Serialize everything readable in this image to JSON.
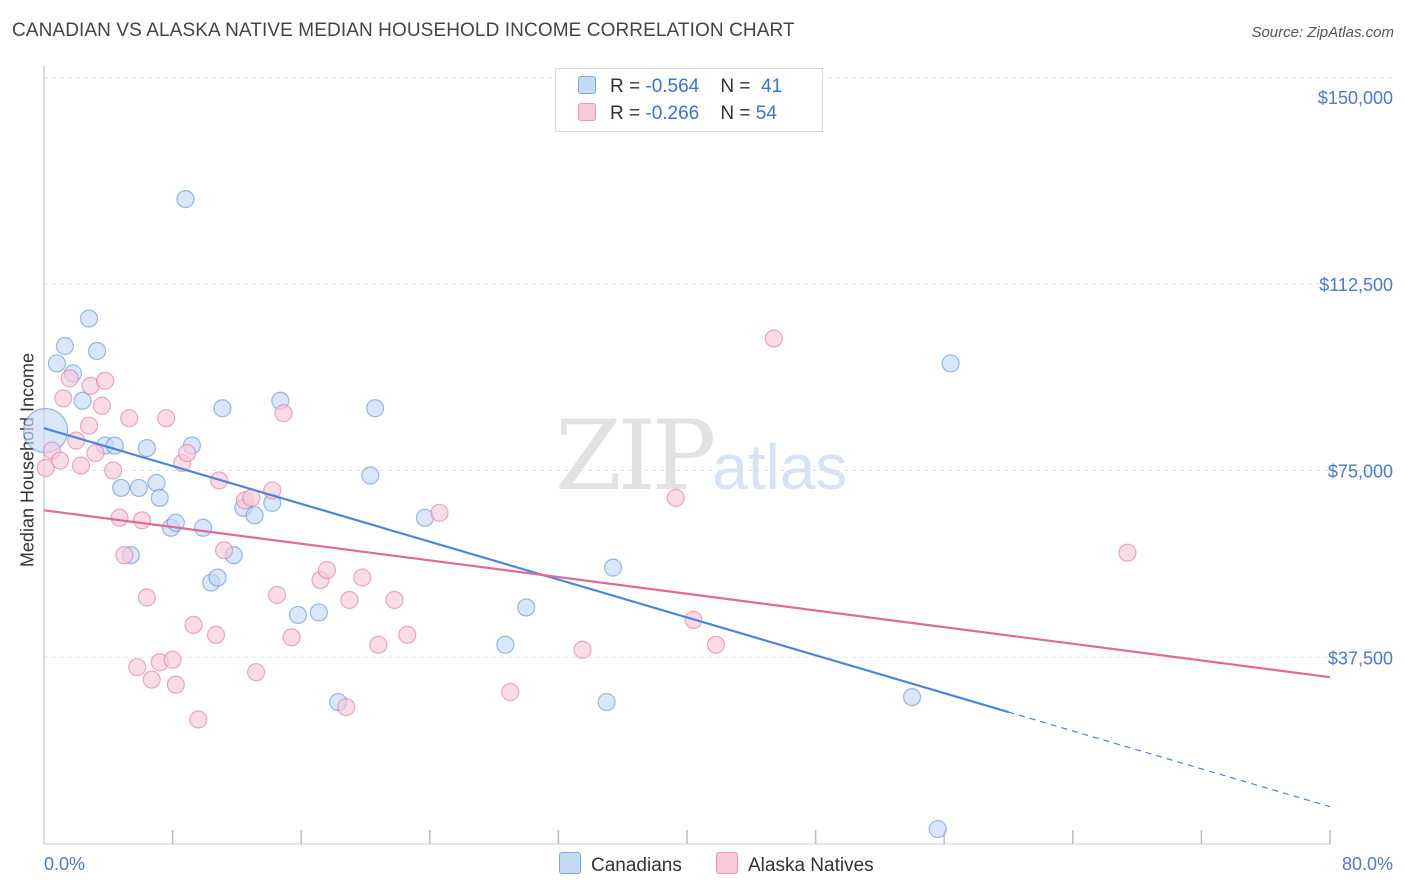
{
  "title": "CANADIAN VS ALASKA NATIVE MEDIAN HOUSEHOLD INCOME CORRELATION CHART",
  "source": "Source: ZipAtlas.com",
  "watermark": {
    "zip": "ZIP",
    "atlas": "atlas"
  },
  "legend": {
    "rows": [
      {
        "r_label": "R = ",
        "r_value": "-0.564",
        "n_label": "N = ",
        "n_value": "41",
        "color": "#a8c8ef"
      },
      {
        "r_label": "R = ",
        "r_value": "-0.266",
        "n_label": "N = ",
        "n_value": "54",
        "color": "#f5b8cb"
      }
    ]
  },
  "bottom_legend": [
    {
      "label": "Canadians",
      "color": "#a8c8ef"
    },
    {
      "label": "Alaska Natives",
      "color": "#f5b8cb"
    }
  ],
  "chart_data": {
    "type": "scatter",
    "ylabel": "Median Household Income",
    "xlabel": "",
    "x_tick_labels": [
      "0.0%",
      "80.0%"
    ],
    "y_tick_labels": [
      "$150,000",
      "$112,500",
      "$75,000",
      "$37,500"
    ],
    "y_ticks": [
      150000,
      112500,
      75000,
      37500
    ],
    "xlim": [
      0,
      80
    ],
    "ylim": [
      0,
      153000
    ],
    "grid": true,
    "series": [
      {
        "name": "Canadians",
        "color": "#4a86d8",
        "fill": "#c4daf4",
        "trend": {
          "x0": 0,
          "y0": 83500,
          "x1": 60,
          "y1": 26500,
          "dash_to_x": 80,
          "dash_to_y": 7500
        },
        "points": [
          {
            "x": 0.1,
            "y": 83000,
            "big": true
          },
          {
            "x": 0.8,
            "y": 96500
          },
          {
            "x": 1.3,
            "y": 100000
          },
          {
            "x": 1.8,
            "y": 94500
          },
          {
            "x": 2.4,
            "y": 89000
          },
          {
            "x": 2.8,
            "y": 105500
          },
          {
            "x": 3.3,
            "y": 99000
          },
          {
            "x": 3.8,
            "y": 80000
          },
          {
            "x": 4.4,
            "y": 80000
          },
          {
            "x": 4.8,
            "y": 71500
          },
          {
            "x": 5.4,
            "y": 58000
          },
          {
            "x": 5.9,
            "y": 71500
          },
          {
            "x": 6.4,
            "y": 79500
          },
          {
            "x": 7.0,
            "y": 72500
          },
          {
            "x": 7.2,
            "y": 69500
          },
          {
            "x": 7.9,
            "y": 63500
          },
          {
            "x": 8.2,
            "y": 64500
          },
          {
            "x": 8.8,
            "y": 129500
          },
          {
            "x": 9.2,
            "y": 80000
          },
          {
            "x": 9.9,
            "y": 63500
          },
          {
            "x": 10.4,
            "y": 52500
          },
          {
            "x": 10.8,
            "y": 53500
          },
          {
            "x": 11.1,
            "y": 87500
          },
          {
            "x": 11.8,
            "y": 58000
          },
          {
            "x": 12.4,
            "y": 67500
          },
          {
            "x": 13.1,
            "y": 66000
          },
          {
            "x": 14.2,
            "y": 68500
          },
          {
            "x": 14.7,
            "y": 89000
          },
          {
            "x": 15.8,
            "y": 46000
          },
          {
            "x": 17.1,
            "y": 46500
          },
          {
            "x": 18.3,
            "y": 28500
          },
          {
            "x": 20.3,
            "y": 74000
          },
          {
            "x": 20.6,
            "y": 87500
          },
          {
            "x": 23.7,
            "y": 65500
          },
          {
            "x": 28.7,
            "y": 40000
          },
          {
            "x": 30.0,
            "y": 47500
          },
          {
            "x": 35.0,
            "y": 28500
          },
          {
            "x": 35.4,
            "y": 55500
          },
          {
            "x": 54.0,
            "y": 29500
          },
          {
            "x": 55.6,
            "y": 3000
          },
          {
            "x": 56.4,
            "y": 96500
          }
        ]
      },
      {
        "name": "Alaska Natives",
        "color": "#e06a97",
        "fill": "#f8cad9",
        "trend": {
          "x0": 0,
          "y0": 67000,
          "x1": 80,
          "y1": 33500
        },
        "points": [
          {
            "x": 0.1,
            "y": 75500
          },
          {
            "x": 0.5,
            "y": 79000
          },
          {
            "x": 1.0,
            "y": 77000
          },
          {
            "x": 1.2,
            "y": 89500
          },
          {
            "x": 1.6,
            "y": 93500
          },
          {
            "x": 2.0,
            "y": 81000
          },
          {
            "x": 2.3,
            "y": 76000
          },
          {
            "x": 2.8,
            "y": 84000
          },
          {
            "x": 2.9,
            "y": 92000
          },
          {
            "x": 3.2,
            "y": 78500
          },
          {
            "x": 3.6,
            "y": 88000
          },
          {
            "x": 3.8,
            "y": 93000
          },
          {
            "x": 4.3,
            "y": 75000
          },
          {
            "x": 4.7,
            "y": 65500
          },
          {
            "x": 5.0,
            "y": 58000
          },
          {
            "x": 5.3,
            "y": 85500
          },
          {
            "x": 5.8,
            "y": 35500
          },
          {
            "x": 6.1,
            "y": 65000
          },
          {
            "x": 6.4,
            "y": 49500
          },
          {
            "x": 6.7,
            "y": 33000
          },
          {
            "x": 7.2,
            "y": 36500
          },
          {
            "x": 7.6,
            "y": 85500
          },
          {
            "x": 8.0,
            "y": 37000
          },
          {
            "x": 8.2,
            "y": 32000
          },
          {
            "x": 8.6,
            "y": 76500
          },
          {
            "x": 8.9,
            "y": 78500
          },
          {
            "x": 9.3,
            "y": 44000
          },
          {
            "x": 9.6,
            "y": 25000
          },
          {
            "x": 10.7,
            "y": 42000
          },
          {
            "x": 10.9,
            "y": 73000
          },
          {
            "x": 11.2,
            "y": 59000
          },
          {
            "x": 12.5,
            "y": 69000
          },
          {
            "x": 12.9,
            "y": 69500
          },
          {
            "x": 13.2,
            "y": 34500
          },
          {
            "x": 14.2,
            "y": 71000
          },
          {
            "x": 14.5,
            "y": 50000
          },
          {
            "x": 14.9,
            "y": 86500
          },
          {
            "x": 15.4,
            "y": 41500
          },
          {
            "x": 17.2,
            "y": 53000
          },
          {
            "x": 17.6,
            "y": 55000
          },
          {
            "x": 18.8,
            "y": 27500
          },
          {
            "x": 19.0,
            "y": 49000
          },
          {
            "x": 19.8,
            "y": 53500
          },
          {
            "x": 20.8,
            "y": 40000
          },
          {
            "x": 21.8,
            "y": 49000
          },
          {
            "x": 22.6,
            "y": 42000
          },
          {
            "x": 24.6,
            "y": 66500
          },
          {
            "x": 29.0,
            "y": 30500
          },
          {
            "x": 33.5,
            "y": 39000
          },
          {
            "x": 39.3,
            "y": 69500
          },
          {
            "x": 40.4,
            "y": 45000
          },
          {
            "x": 41.8,
            "y": 40000
          },
          {
            "x": 45.4,
            "y": 101500
          },
          {
            "x": 67.4,
            "y": 58500
          }
        ]
      }
    ]
  }
}
